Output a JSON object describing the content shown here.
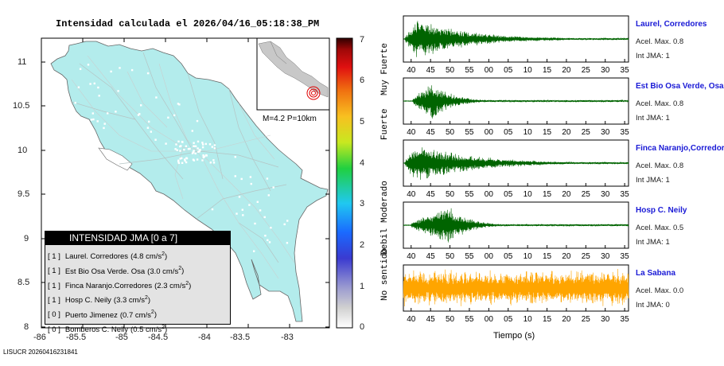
{
  "title": "Intensidad calculada el 2026/04/16_05:18:38_PM",
  "footer_id": "LISUCR 20260416231841",
  "map": {
    "lat_ticks": [
      "11",
      "10.5",
      "10",
      "9.5",
      "9",
      "8.5",
      "8"
    ],
    "lon_ticks": [
      "-86",
      "-85.5",
      "-85",
      "-84.5",
      "-84",
      "-83.5",
      "-83"
    ],
    "land_color": "#b3ecec",
    "inset_label": "M=4.2 P=10km"
  },
  "legend": {
    "header": "INTENSIDAD JMA [0 a 7]",
    "rows": [
      {
        "int": "[ 1 ]",
        "station": "Laurel. Corredores",
        "accel": "(4.8 cm/s",
        "exp": "2",
        "close": ")"
      },
      {
        "int": "[ 1 ]",
        "station": "Est Bio Osa Verde. Osa",
        "accel": "(3.0 cm/s",
        "exp": "2",
        "close": ")"
      },
      {
        "int": "[ 1 ]",
        "station": "Finca Naranjo.Corredores",
        "accel": "(2.3 cm/s",
        "exp": "2",
        "close": ")"
      },
      {
        "int": "[ 1 ]",
        "station": "Hosp C. Neily",
        "accel": "(3.3 cm/s",
        "exp": "2",
        "close": ")"
      },
      {
        "int": "[ 0 ]",
        "station": "Puerto Jimenez",
        "accel": "(0.7 cm/s",
        "exp": "2",
        "close": ")"
      },
      {
        "int": "[ 0 ]",
        "station": "Bomberos C. Neily",
        "accel": "(0.5 cm/s",
        "exp": "2",
        "close": ")"
      }
    ]
  },
  "colorbar": {
    "ticks": [
      "0",
      "1",
      "2",
      "3",
      "4",
      "5",
      "6",
      "7"
    ],
    "categories": [
      "No sentido",
      "Debil",
      "Moderado",
      "Fuerte",
      "Muy Fuerte"
    ]
  },
  "chart_data": {
    "type": "line",
    "xlabel": "Tiempo (s)",
    "x_tick_labels": [
      "40",
      "45",
      "50",
      "55",
      "00",
      "05",
      "10",
      "15",
      "20",
      "25",
      "30",
      "35"
    ],
    "series": [
      {
        "name": "Laurel, Corredores",
        "accel_label": "Acel. Max. 0.8",
        "int_label": "Int JMA: 1",
        "color": "#006400",
        "onset_s": 38.5,
        "peak_s": 41.5,
        "decay_s": 14
      },
      {
        "name": "Est Bio Osa Verde, Osa",
        "accel_label": "Acel. Max. 0.8",
        "int_label": "Int JMA: 1",
        "color": "#006400",
        "onset_s": 40.5,
        "peak_s": 45.5,
        "decay_s": 5
      },
      {
        "name": "Finca Naranjo,Corredores",
        "accel_label": "Acel. Max. 0.8",
        "int_label": "Int JMA: 1",
        "color": "#006400",
        "onset_s": 38.5,
        "peak_s": 41,
        "decay_s": 15
      },
      {
        "name": "Hosp C. Neily",
        "accel_label": "Acel. Max. 0.5",
        "int_label": "Int JMA: 1",
        "color": "#006400",
        "onset_s": 40,
        "peak_s": 49.5,
        "decay_s": 5
      },
      {
        "name": "La Sabana",
        "accel_label": "Acel. Max. 0.0",
        "int_label": "Int JMA: 0",
        "color": "#ffa500",
        "onset_s": 38,
        "peak_s": 60,
        "decay_s": 999
      }
    ]
  }
}
